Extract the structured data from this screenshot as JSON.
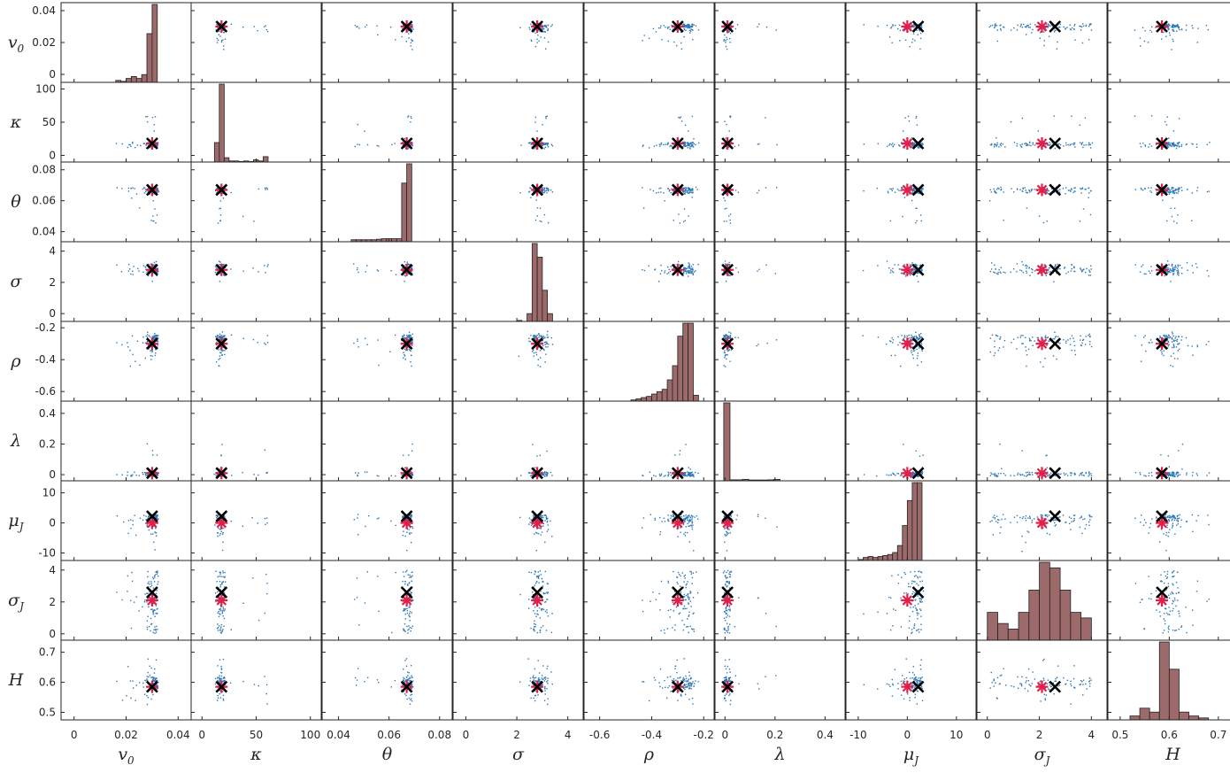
{
  "chart_data": {
    "type": "scatter",
    "layout": "scatter-plot matrix with histograms on the diagonal",
    "variables": [
      {
        "key": "v0",
        "label": "v",
        "sub": "0",
        "range": [
          -0.005,
          0.045
        ],
        "ticks": [
          0,
          0.02,
          0.04
        ],
        "tick_labels": [
          "0",
          "0.02",
          "0.04"
        ],
        "true": 0.03,
        "est": 0.03
      },
      {
        "key": "kappa",
        "label": "κ",
        "sub": "",
        "range": [
          -10,
          110
        ],
        "ticks": [
          0,
          50,
          100
        ],
        "tick_labels": [
          "0",
          "50",
          "100"
        ],
        "true": 18,
        "est": 18
      },
      {
        "key": "theta",
        "label": "θ",
        "sub": "",
        "range": [
          0.0335,
          0.085
        ],
        "ticks": [
          0.04,
          0.06,
          0.08
        ],
        "tick_labels": [
          "0.04",
          "0.06",
          "0.08"
        ],
        "true": 0.067,
        "est": 0.067
      },
      {
        "key": "sigma",
        "label": "σ",
        "sub": "",
        "range": [
          -0.5,
          4.6
        ],
        "ticks": [
          0,
          2,
          4
        ],
        "tick_labels": [
          "0",
          "2",
          "4"
        ],
        "true": 2.8,
        "est": 2.8
      },
      {
        "key": "rho",
        "label": "ρ",
        "sub": "",
        "range": [
          -0.66,
          -0.16
        ],
        "ticks": [
          -0.6,
          -0.4,
          -0.2
        ],
        "tick_labels": [
          "-0.6",
          "-0.4",
          "-0.2"
        ],
        "true": -0.3,
        "est": -0.3
      },
      {
        "key": "lambda",
        "label": "λ",
        "sub": "",
        "range": [
          -0.04,
          0.48
        ],
        "ticks": [
          0,
          0.2,
          0.4
        ],
        "tick_labels": [
          "0",
          "0.2",
          "0.4"
        ],
        "true": 0.01,
        "est": 0.01
      },
      {
        "key": "muJ",
        "label": "μ",
        "sub": "J",
        "range": [
          -12.5,
          14
        ],
        "ticks": [
          -10,
          0,
          10
        ],
        "tick_labels": [
          "-10",
          "0",
          "10"
        ],
        "true": 2.2,
        "est": 0
      },
      {
        "key": "sigmaJ",
        "label": "σ",
        "sub": "J",
        "range": [
          -0.4,
          4.6
        ],
        "ticks": [
          0,
          2,
          4
        ],
        "tick_labels": [
          "0",
          "2",
          "4"
        ],
        "true": 2.6,
        "est": 2.1
      },
      {
        "key": "H",
        "label": "H",
        "sub": "",
        "range": [
          0.475,
          0.74
        ],
        "ticks": [
          0.5,
          0.6,
          0.7
        ],
        "tick_labels": [
          "0.5",
          "0.6",
          "0.7"
        ],
        "true": 0.585,
        "est": 0.585
      }
    ],
    "histograms": {
      "v0": {
        "edges": [
          0.016,
          0.018,
          0.02,
          0.022,
          0.024,
          0.026,
          0.028,
          0.03,
          0.032
        ],
        "counts": [
          1,
          0.5,
          2,
          3,
          2,
          4,
          25,
          40
        ]
      },
      "kappa": {
        "edges": [
          11.5,
          16,
          20.5,
          25,
          29.5,
          34,
          38.5,
          43,
          47.5,
          52,
          56.5,
          61
        ],
        "counts": [
          18,
          72,
          4,
          1,
          1,
          0.5,
          1,
          0.5,
          2,
          1,
          5
        ]
      },
      "theta": {
        "edges": [
          0.045,
          0.047,
          0.049,
          0.051,
          0.053,
          0.055,
          0.057,
          0.059,
          0.061,
          0.063,
          0.065,
          0.067,
          0.069
        ],
        "counts": [
          1.2,
          1.2,
          1.2,
          1.2,
          1.2,
          1.5,
          1.8,
          1.8,
          1.8,
          1.8,
          35,
          46.5
        ]
      },
      "sigma": {
        "edges": [
          2.0,
          2.2,
          2.4,
          2.6,
          2.8,
          3.0,
          3.2,
          3.4
        ],
        "counts": [
          1,
          0,
          8,
          80,
          66,
          32,
          8
        ]
      },
      "rho": {
        "edges": [
          -0.48,
          -0.46,
          -0.44,
          -0.42,
          -0.4,
          -0.38,
          -0.36,
          -0.34,
          -0.32,
          -0.3,
          -0.28,
          -0.26,
          -0.24,
          -0.22
        ],
        "counts": [
          1,
          2,
          3,
          4,
          6,
          8,
          10,
          18,
          30,
          55,
          66,
          66,
          5
        ]
      },
      "lambda": {
        "edges": [
          -0.005,
          0.02,
          0.045,
          0.07,
          0.095,
          0.12,
          0.145,
          0.17,
          0.195,
          0.22
        ],
        "counts": [
          80,
          1,
          1,
          1.5,
          0.8,
          0.8,
          0.8,
          1,
          1.5
        ]
      },
      "muJ": {
        "edges": [
          -10,
          -9,
          -8,
          -7,
          -6,
          -5,
          -4,
          -3,
          -2,
          -1,
          0,
          1,
          2,
          3
        ],
        "counts": [
          1,
          3,
          4,
          3,
          4,
          5,
          6,
          8,
          15,
          35,
          60,
          78,
          78
        ]
      },
      "sigmaJ": {
        "edges": [
          0,
          0.4,
          0.8,
          1.2,
          1.6,
          2.0,
          2.4,
          2.8,
          3.2,
          3.6,
          4.0
        ],
        "counts": [
          5,
          3,
          2,
          5,
          9,
          14,
          13,
          9,
          5,
          4
        ]
      },
      "H": {
        "edges": [
          0.52,
          0.54,
          0.56,
          0.58,
          0.6,
          0.62,
          0.64,
          0.66,
          0.68
        ],
        "counts": [
          1,
          3,
          2,
          20,
          13,
          2,
          1,
          0.5
        ]
      }
    },
    "markers": {
      "true_params": {
        "symbol": "×",
        "color": "#000000"
      },
      "estimated_params": {
        "symbol": "*",
        "color": "#e0204a"
      }
    },
    "point_color": "#2f77b4",
    "bar_color": "#9c6a6a",
    "grid": false,
    "legend": "none"
  }
}
